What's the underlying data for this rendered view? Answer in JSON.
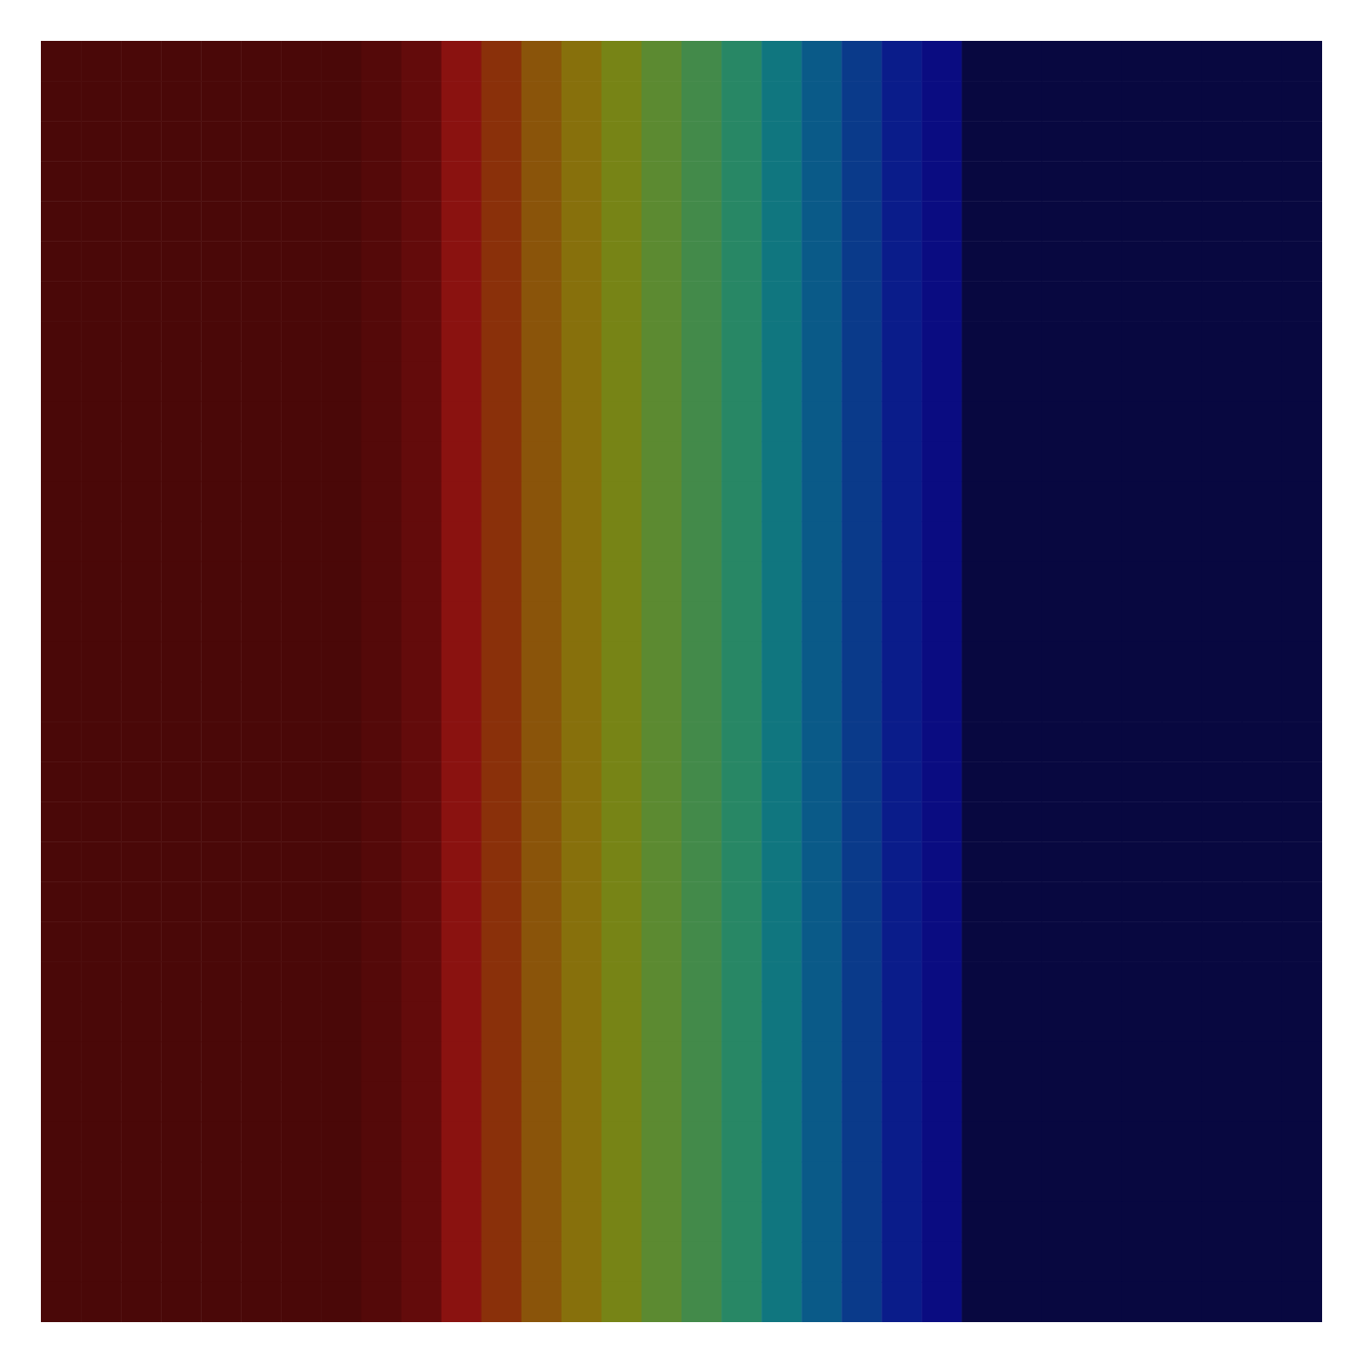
{
  "chart_data": {
    "type": "heatmap",
    "xlim": [
      0,
      32
    ],
    "ylim": [
      0,
      32
    ],
    "tick_labels": false,
    "zlim": [
      0,
      1
    ],
    "cells": [
      [
        1,
        1,
        1,
        1,
        1,
        1,
        1,
        1,
        0.97,
        0.93,
        0.87,
        0.8,
        0.73,
        0.67,
        0.6,
        0.53,
        0.47,
        0.4,
        0.33,
        0.27,
        0.2,
        0.13,
        0.07,
        0,
        0,
        0,
        0,
        0,
        0,
        0,
        0,
        0
      ],
      [
        1,
        1,
        1,
        1,
        1,
        1,
        1,
        1,
        0.97,
        0.93,
        0.87,
        0.8,
        0.73,
        0.67,
        0.6,
        0.53,
        0.47,
        0.4,
        0.33,
        0.27,
        0.2,
        0.13,
        0.07,
        0,
        0,
        0,
        0,
        0,
        0,
        0,
        0,
        0
      ],
      [
        1,
        1,
        1,
        1,
        1,
        1,
        1,
        1,
        0.97,
        0.93,
        0.87,
        0.8,
        0.73,
        0.67,
        0.6,
        0.53,
        0.47,
        0.4,
        0.33,
        0.27,
        0.2,
        0.13,
        0.07,
        0,
        0,
        0,
        0,
        0,
        0,
        0,
        0,
        0
      ],
      [
        1,
        1,
        1,
        1,
        1,
        1,
        1,
        1,
        0.97,
        0.93,
        0.87,
        0.8,
        0.73,
        0.67,
        0.6,
        0.53,
        0.47,
        0.4,
        0.33,
        0.27,
        0.2,
        0.13,
        0.07,
        0,
        0,
        0,
        0,
        0,
        0,
        0,
        0,
        0
      ],
      [
        1,
        1,
        1,
        1,
        1,
        1,
        1,
        1,
        0.97,
        0.93,
        0.87,
        0.8,
        0.73,
        0.67,
        0.6,
        0.53,
        0.47,
        0.4,
        0.33,
        0.27,
        0.2,
        0.13,
        0.07,
        0,
        0,
        0,
        0,
        0,
        0,
        0,
        0,
        0
      ],
      [
        1,
        1,
        1,
        1,
        1,
        1,
        1,
        1,
        0.97,
        0.93,
        0.87,
        0.8,
        0.73,
        0.67,
        0.6,
        0.53,
        0.47,
        0.4,
        0.33,
        0.27,
        0.2,
        0.13,
        0.07,
        0,
        0,
        0,
        0,
        0,
        0,
        0,
        0,
        0
      ],
      [
        1,
        1,
        1,
        1,
        1,
        1,
        1,
        1,
        0.97,
        0.93,
        0.87,
        0.8,
        0.73,
        0.67,
        0.6,
        0.53,
        0.47,
        0.4,
        0.33,
        0.27,
        0.2,
        0.13,
        0.07,
        0,
        0,
        0,
        0,
        0,
        0,
        0,
        0,
        0
      ],
      [
        1,
        1,
        1,
        1,
        1,
        1,
        1,
        1,
        0.97,
        0.93,
        0.87,
        0.8,
        0.73,
        0.67,
        0.6,
        0.53,
        0.47,
        0.4,
        0.33,
        0.27,
        0.2,
        0.13,
        0.07,
        0,
        0,
        0,
        0,
        0,
        0,
        0,
        0,
        0
      ],
      [
        1,
        1,
        1,
        1,
        1,
        1,
        1,
        1,
        0.97,
        0.93,
        0.87,
        0.8,
        0.73,
        0.67,
        0.6,
        0.53,
        0.47,
        0.4,
        0.33,
        0.27,
        0.2,
        0.13,
        0.07,
        0,
        0,
        0,
        0,
        0,
        0,
        0,
        0,
        0
      ],
      [
        1,
        1,
        1,
        1,
        1,
        1,
        1,
        1,
        0.97,
        0.93,
        0.87,
        0.8,
        0.73,
        0.67,
        0.6,
        0.53,
        0.47,
        0.4,
        0.33,
        0.27,
        0.2,
        0.13,
        0.07,
        0,
        0,
        0,
        0,
        0,
        0,
        0,
        0,
        0
      ],
      [
        1,
        1,
        1,
        1,
        1,
        1,
        1,
        1,
        0.97,
        0.93,
        0.87,
        0.8,
        0.73,
        0.67,
        0.6,
        0.53,
        0.47,
        0.4,
        0.33,
        0.27,
        0.2,
        0.13,
        0.07,
        0,
        0,
        0,
        0,
        0,
        0,
        0,
        0,
        0
      ],
      [
        1,
        1,
        1,
        1,
        1,
        1,
        1,
        1,
        0.97,
        0.93,
        0.87,
        0.8,
        0.73,
        0.67,
        0.6,
        0.53,
        0.47,
        0.4,
        0.33,
        0.27,
        0.2,
        0.13,
        0.07,
        0,
        0,
        0,
        0,
        0,
        0,
        0,
        0,
        0
      ],
      [
        1,
        1,
        1,
        1,
        1,
        1,
        1,
        1,
        0.97,
        0.93,
        0.87,
        0.8,
        0.73,
        0.67,
        0.6,
        0.53,
        0.47,
        0.4,
        0.33,
        0.27,
        0.2,
        0.13,
        0.07,
        0,
        0,
        0,
        0,
        0,
        0,
        0,
        0,
        0
      ],
      [
        1,
        1,
        1,
        1,
        1,
        1,
        1,
        1,
        0.97,
        0.93,
        0.87,
        0.8,
        0.73,
        0.67,
        0.6,
        0.53,
        0.47,
        0.4,
        0.33,
        0.27,
        0.2,
        0.13,
        0.07,
        0,
        0,
        0,
        0,
        0,
        0,
        0,
        0,
        0
      ],
      [
        1,
        1,
        1,
        1,
        1,
        1,
        1,
        1,
        0.97,
        0.93,
        0.87,
        0.8,
        0.73,
        0.67,
        0.6,
        0.53,
        0.47,
        0.4,
        0.33,
        0.27,
        0.2,
        0.13,
        0.07,
        0,
        0,
        0,
        0,
        0,
        0,
        0,
        0,
        0
      ],
      [
        1,
        1,
        1,
        1,
        1,
        1,
        1,
        1,
        0.97,
        0.93,
        0.87,
        0.8,
        0.73,
        0.67,
        0.6,
        0.53,
        0.47,
        0.4,
        0.33,
        0.27,
        0.2,
        0.13,
        0.07,
        0,
        0,
        0,
        0,
        0,
        0,
        0,
        0,
        0
      ],
      [
        1,
        1,
        1,
        1,
        1,
        1,
        1,
        1,
        0.97,
        0.93,
        0.87,
        0.8,
        0.73,
        0.67,
        0.6,
        0.53,
        0.47,
        0.4,
        0.33,
        0.27,
        0.2,
        0.13,
        0.07,
        0,
        0,
        0,
        0,
        0,
        0,
        0,
        0,
        0
      ],
      [
        1,
        1,
        1,
        1,
        1,
        1,
        1,
        1,
        0.97,
        0.93,
        0.87,
        0.8,
        0.73,
        0.67,
        0.6,
        0.53,
        0.47,
        0.4,
        0.33,
        0.27,
        0.2,
        0.13,
        0.07,
        0,
        0,
        0,
        0,
        0,
        0,
        0,
        0,
        0
      ],
      [
        1,
        1,
        1,
        1,
        1,
        1,
        1,
        1,
        0.97,
        0.93,
        0.87,
        0.8,
        0.73,
        0.67,
        0.6,
        0.53,
        0.47,
        0.4,
        0.33,
        0.27,
        0.2,
        0.13,
        0.07,
        0,
        0,
        0,
        0,
        0,
        0,
        0,
        0,
        0
      ],
      [
        1,
        1,
        1,
        1,
        1,
        1,
        1,
        1,
        0.97,
        0.93,
        0.87,
        0.8,
        0.73,
        0.67,
        0.6,
        0.53,
        0.47,
        0.4,
        0.33,
        0.27,
        0.2,
        0.13,
        0.07,
        0,
        0,
        0,
        0,
        0,
        0,
        0,
        0,
        0
      ],
      [
        1,
        1,
        1,
        1,
        1,
        1,
        1,
        1,
        0.97,
        0.93,
        0.87,
        0.8,
        0.73,
        0.67,
        0.6,
        0.53,
        0.47,
        0.4,
        0.33,
        0.27,
        0.2,
        0.13,
        0.07,
        0,
        0,
        0,
        0,
        0,
        0,
        0,
        0,
        0
      ],
      [
        1,
        1,
        1,
        1,
        1,
        1,
        1,
        1,
        0.97,
        0.93,
        0.87,
        0.8,
        0.73,
        0.67,
        0.6,
        0.53,
        0.47,
        0.4,
        0.33,
        0.27,
        0.2,
        0.13,
        0.07,
        0,
        0,
        0,
        0,
        0,
        0,
        0,
        0,
        0
      ],
      [
        1,
        1,
        1,
        1,
        1,
        1,
        1,
        1,
        0.97,
        0.93,
        0.87,
        0.8,
        0.73,
        0.67,
        0.6,
        0.53,
        0.47,
        0.4,
        0.33,
        0.27,
        0.2,
        0.13,
        0.07,
        0,
        0,
        0,
        0,
        0,
        0,
        0,
        0,
        0
      ],
      [
        1,
        1,
        1,
        1,
        1,
        1,
        1,
        1,
        0.97,
        0.93,
        0.87,
        0.8,
        0.73,
        0.67,
        0.6,
        0.53,
        0.47,
        0.4,
        0.33,
        0.27,
        0.2,
        0.13,
        0.07,
        0,
        0,
        0,
        0,
        0,
        0,
        0,
        0,
        0
      ],
      [
        1,
        1,
        1,
        1,
        1,
        1,
        1,
        1,
        0.97,
        0.93,
        0.87,
        0.8,
        0.73,
        0.67,
        0.6,
        0.53,
        0.47,
        0.4,
        0.33,
        0.27,
        0.2,
        0.13,
        0.07,
        0,
        0,
        0,
        0,
        0,
        0,
        0,
        0,
        0
      ],
      [
        1,
        1,
        1,
        1,
        1,
        1,
        1,
        1,
        0.97,
        0.93,
        0.87,
        0.8,
        0.73,
        0.67,
        0.6,
        0.53,
        0.47,
        0.4,
        0.33,
        0.27,
        0.2,
        0.13,
        0.07,
        0,
        0,
        0,
        0,
        0,
        0,
        0,
        0,
        0
      ],
      [
        1,
        1,
        1,
        1,
        1,
        1,
        1,
        1,
        0.97,
        0.93,
        0.87,
        0.8,
        0.73,
        0.67,
        0.6,
        0.53,
        0.47,
        0.4,
        0.33,
        0.27,
        0.2,
        0.13,
        0.07,
        0,
        0,
        0,
        0,
        0,
        0,
        0,
        0,
        0
      ],
      [
        1,
        1,
        1,
        1,
        1,
        1,
        1,
        1,
        0.97,
        0.93,
        0.87,
        0.8,
        0.73,
        0.67,
        0.6,
        0.53,
        0.47,
        0.4,
        0.33,
        0.27,
        0.2,
        0.13,
        0.07,
        0,
        0,
        0,
        0,
        0,
        0,
        0,
        0,
        0
      ],
      [
        1,
        1,
        1,
        1,
        1,
        1,
        1,
        1,
        0.97,
        0.93,
        0.87,
        0.8,
        0.73,
        0.67,
        0.6,
        0.53,
        0.47,
        0.4,
        0.33,
        0.27,
        0.2,
        0.13,
        0.07,
        0,
        0,
        0,
        0,
        0,
        0,
        0,
        0,
        0
      ],
      [
        1,
        1,
        1,
        1,
        1,
        1,
        1,
        1,
        0.97,
        0.93,
        0.87,
        0.8,
        0.73,
        0.67,
        0.6,
        0.53,
        0.47,
        0.4,
        0.33,
        0.27,
        0.2,
        0.13,
        0.07,
        0,
        0,
        0,
        0,
        0,
        0,
        0,
        0,
        0
      ],
      [
        1,
        1,
        1,
        1,
        1,
        1,
        1,
        1,
        0.97,
        0.93,
        0.87,
        0.8,
        0.73,
        0.67,
        0.6,
        0.53,
        0.47,
        0.4,
        0.33,
        0.27,
        0.2,
        0.13,
        0.07,
        0,
        0,
        0,
        0,
        0,
        0,
        0,
        0,
        0
      ],
      [
        1,
        1,
        1,
        1,
        1,
        1,
        1,
        1,
        0.97,
        0.93,
        0.87,
        0.8,
        0.73,
        0.67,
        0.6,
        0.53,
        0.47,
        0.4,
        0.33,
        0.27,
        0.2,
        0.13,
        0.07,
        0,
        0,
        0,
        0,
        0,
        0,
        0,
        0,
        0
      ]
    ]
  }
}
